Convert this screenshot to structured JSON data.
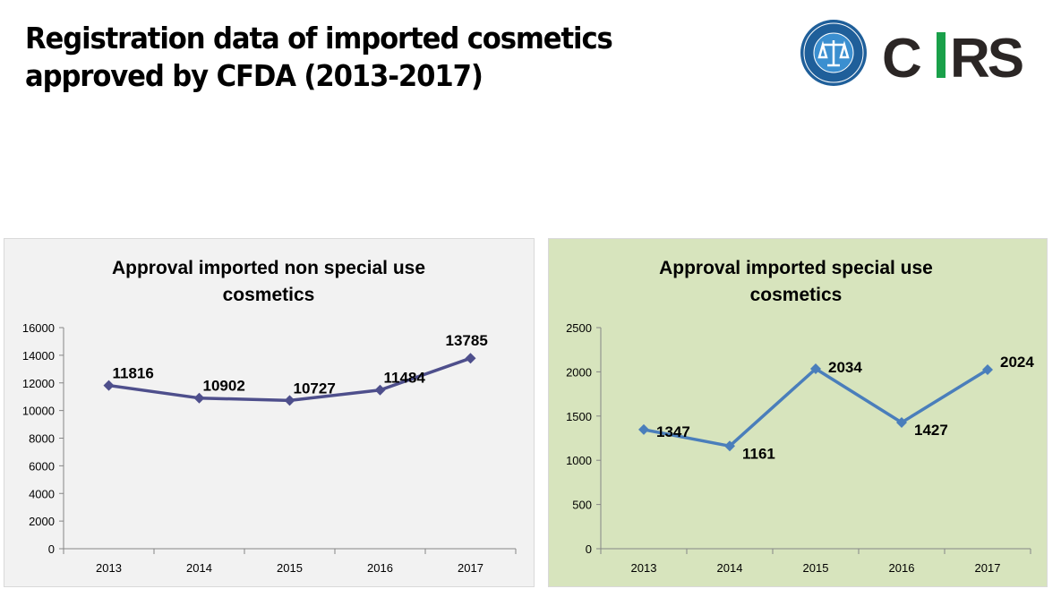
{
  "title": "Registration data of imported cosmetics approved by CFDA (2013-2017)",
  "logo": {
    "text": "CIRS"
  },
  "colors": {
    "chart1_bg": "#f2f2f2",
    "chart1_line": "#4e4f8c",
    "chart2_bg": "#d7e4bd",
    "chart2_line": "#4a7ebb"
  },
  "chart_data": [
    {
      "type": "line",
      "title": "Approval imported non special use cosmetics",
      "title_lines": [
        "Approval imported non special use",
        "cosmetics"
      ],
      "categories": [
        "2013",
        "2014",
        "2015",
        "2016",
        "2017"
      ],
      "values": [
        11816,
        10902,
        10727,
        11484,
        13785
      ],
      "ylim": [
        0,
        16000
      ],
      "yticks": [
        0,
        2000,
        4000,
        6000,
        8000,
        10000,
        12000,
        14000,
        16000
      ],
      "xlabel": "",
      "ylabel": "",
      "grid": false,
      "legend": "none"
    },
    {
      "type": "line",
      "title": "Approval imported special use cosmetics",
      "title_lines": [
        "Approval imported special use",
        "cosmetics"
      ],
      "categories": [
        "2013",
        "2014",
        "2015",
        "2016",
        "2017"
      ],
      "values": [
        1347,
        1161,
        2034,
        1427,
        2024
      ],
      "ylim": [
        0,
        2500
      ],
      "yticks": [
        0,
        500,
        1000,
        1500,
        2000,
        2500
      ],
      "xlabel": "",
      "ylabel": "",
      "grid": false,
      "legend": "none"
    }
  ]
}
